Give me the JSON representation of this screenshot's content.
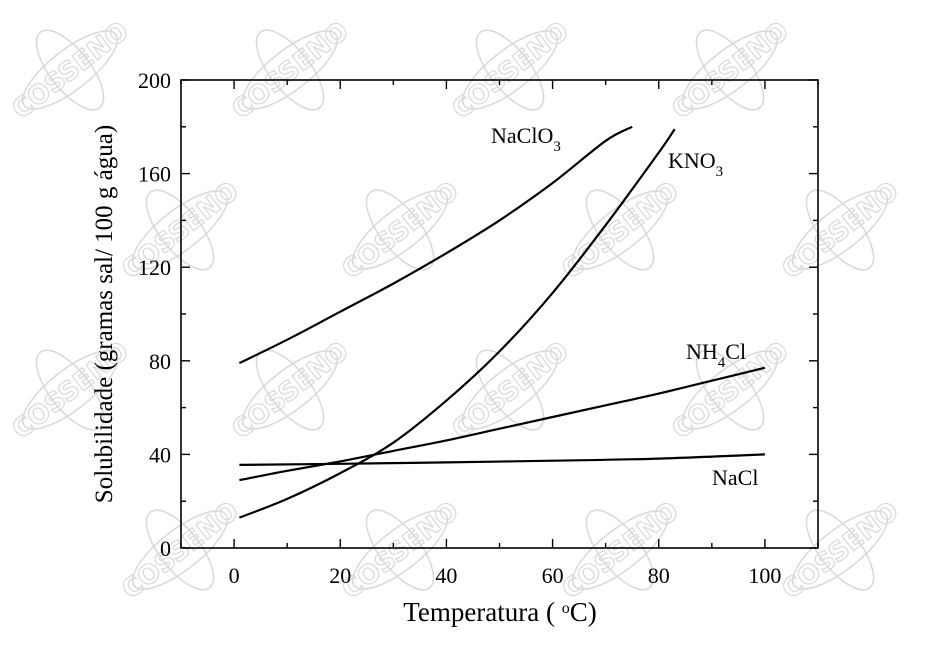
{
  "chart_data": {
    "type": "line",
    "xlabel": "Temperatura ( °C)",
    "ylabel": "Solubilidade (gramas sal/ 100 g água)",
    "xlim": [
      -10,
      110
    ],
    "ylim": [
      0,
      200
    ],
    "x_ticks": [
      0,
      20,
      40,
      60,
      80,
      100
    ],
    "y_ticks": [
      0,
      40,
      80,
      120,
      160,
      200
    ],
    "grid": false,
    "series": [
      {
        "name": "NaClO3",
        "label_main": "NaClO",
        "label_sub": "3",
        "label_tail": "",
        "points": [
          [
            1,
            79
          ],
          [
            10,
            89
          ],
          [
            20,
            101
          ],
          [
            30,
            113
          ],
          [
            40,
            126
          ],
          [
            50,
            140
          ],
          [
            60,
            156
          ],
          [
            70,
            174
          ],
          [
            75,
            180
          ]
        ]
      },
      {
        "name": "KNO3",
        "label_main": "KNO",
        "label_sub": "3",
        "label_tail": "",
        "points": [
          [
            1,
            13
          ],
          [
            10,
            21
          ],
          [
            20,
            32
          ],
          [
            30,
            45
          ],
          [
            40,
            63
          ],
          [
            50,
            84
          ],
          [
            60,
            109
          ],
          [
            70,
            138
          ],
          [
            80,
            169
          ],
          [
            83,
            179
          ]
        ]
      },
      {
        "name": "NH4Cl",
        "label_main": "NH",
        "label_sub": "4",
        "label_tail": "Cl",
        "points": [
          [
            1,
            29
          ],
          [
            10,
            33
          ],
          [
            20,
            37
          ],
          [
            30,
            41.5
          ],
          [
            40,
            46
          ],
          [
            50,
            51
          ],
          [
            60,
            56
          ],
          [
            70,
            61
          ],
          [
            80,
            66
          ],
          [
            90,
            71.5
          ],
          [
            100,
            77
          ]
        ]
      },
      {
        "name": "NaCl",
        "label_main": "NaCl",
        "label_sub": "",
        "label_tail": "",
        "points": [
          [
            1,
            35.5
          ],
          [
            20,
            36
          ],
          [
            40,
            36.6
          ],
          [
            60,
            37.3
          ],
          [
            80,
            38.2
          ],
          [
            100,
            40
          ]
        ]
      }
    ]
  },
  "watermark": {
    "text": "COSSENO",
    "color": "#d9d9d9"
  }
}
